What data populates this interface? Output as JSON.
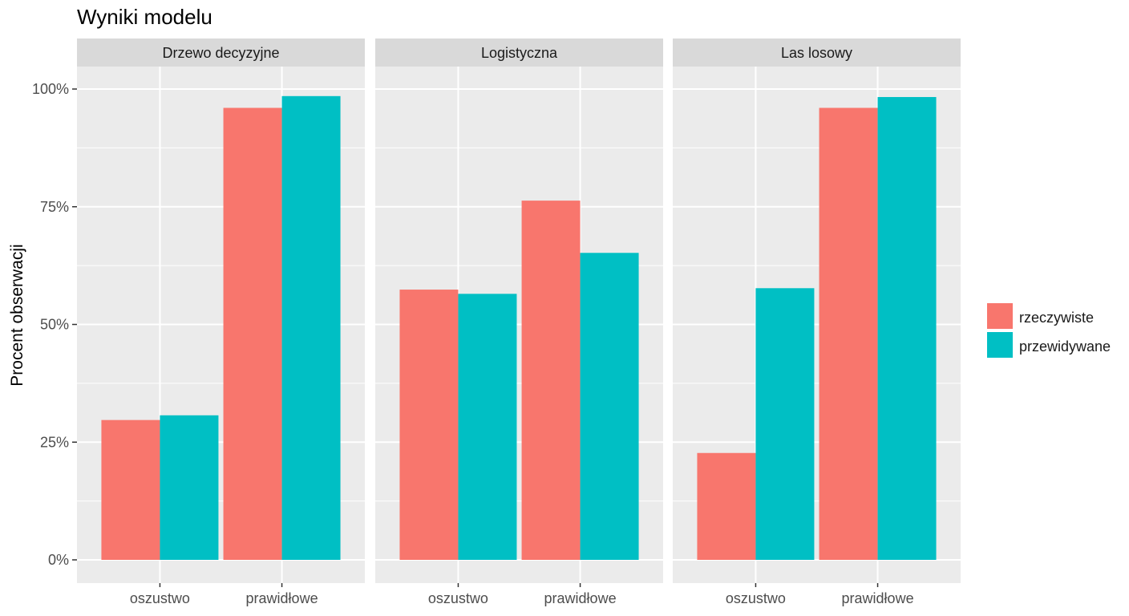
{
  "chart_data": {
    "type": "bar",
    "title": "Wyniki modelu",
    "xlabel": "",
    "ylabel": "Procent obserwacji",
    "ylim": [
      0,
      1.07
    ],
    "y_ticks": [
      0,
      0.25,
      0.5,
      0.75,
      1.0
    ],
    "y_tick_labels": [
      "0%",
      "25%",
      "50%",
      "75%",
      "100%"
    ],
    "categories": [
      "oszustwo",
      "prawidłowe"
    ],
    "legend": {
      "position": "right",
      "entries": [
        {
          "name": "rzeczywiste",
          "color": "#F8766D"
        },
        {
          "name": "przewidywane",
          "color": "#00BFC4"
        }
      ]
    },
    "panel_background": "#EBEBEB",
    "strip_background": "#D9D9D9",
    "grid": true,
    "facets": [
      {
        "label": "Drzewo decyzyjne",
        "series": [
          {
            "name": "rzeczywiste",
            "values": [
              0.297,
              0.96
            ]
          },
          {
            "name": "przewidywane",
            "values": [
              0.307,
              0.985
            ]
          }
        ]
      },
      {
        "label": "Logistyczna",
        "series": [
          {
            "name": "rzeczywiste",
            "values": [
              0.574,
              0.763
            ]
          },
          {
            "name": "przewidywane",
            "values": [
              0.565,
              0.652
            ]
          }
        ]
      },
      {
        "label": "Las losowy",
        "series": [
          {
            "name": "rzeczywiste",
            "values": [
              0.227,
              0.96
            ]
          },
          {
            "name": "przewidywane",
            "values": [
              0.577,
              0.983
            ]
          }
        ]
      }
    ]
  }
}
